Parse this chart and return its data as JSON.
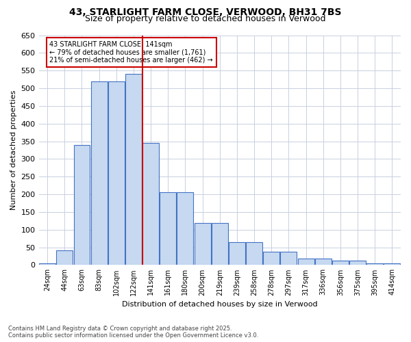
{
  "title": "43, STARLIGHT FARM CLOSE, VERWOOD, BH31 7BS",
  "subtitle": "Size of property relative to detached houses in Verwood",
  "xlabel": "Distribution of detached houses by size in Verwood",
  "ylabel": "Number of detached properties",
  "footnote": "Contains HM Land Registry data © Crown copyright and database right 2025.\nContains public sector information licensed under the Open Government Licence v3.0.",
  "bin_labels": [
    "24sqm",
    "44sqm",
    "63sqm",
    "83sqm",
    "102sqm",
    "122sqm",
    "141sqm",
    "161sqm",
    "180sqm",
    "200sqm",
    "219sqm",
    "239sqm",
    "258sqm",
    "278sqm",
    "297sqm",
    "317sqm",
    "336sqm",
    "356sqm",
    "375sqm",
    "395sqm",
    "414sqm"
  ],
  "bar_heights": [
    5,
    42,
    340,
    520,
    520,
    540,
    345,
    205,
    205,
    118,
    118,
    65,
    65,
    37,
    37,
    18,
    18,
    12,
    12,
    5,
    5
  ],
  "bar_color": "#c6d9f0",
  "bar_edge_color": "#4472c4",
  "highlight_line_index": 6,
  "highlight_line_color": "#cc0000",
  "annotation_text": "43 STARLIGHT FARM CLOSE: 141sqm\n← 79% of detached houses are smaller (1,761)\n21% of semi-detached houses are larger (462) →",
  "annotation_box_color": "#cc0000",
  "ylim": [
    0,
    650
  ],
  "yticks": [
    0,
    50,
    100,
    150,
    200,
    250,
    300,
    350,
    400,
    450,
    500,
    550,
    600,
    650
  ],
  "background_color": "#ffffff",
  "grid_color": "#c8d0e0"
}
